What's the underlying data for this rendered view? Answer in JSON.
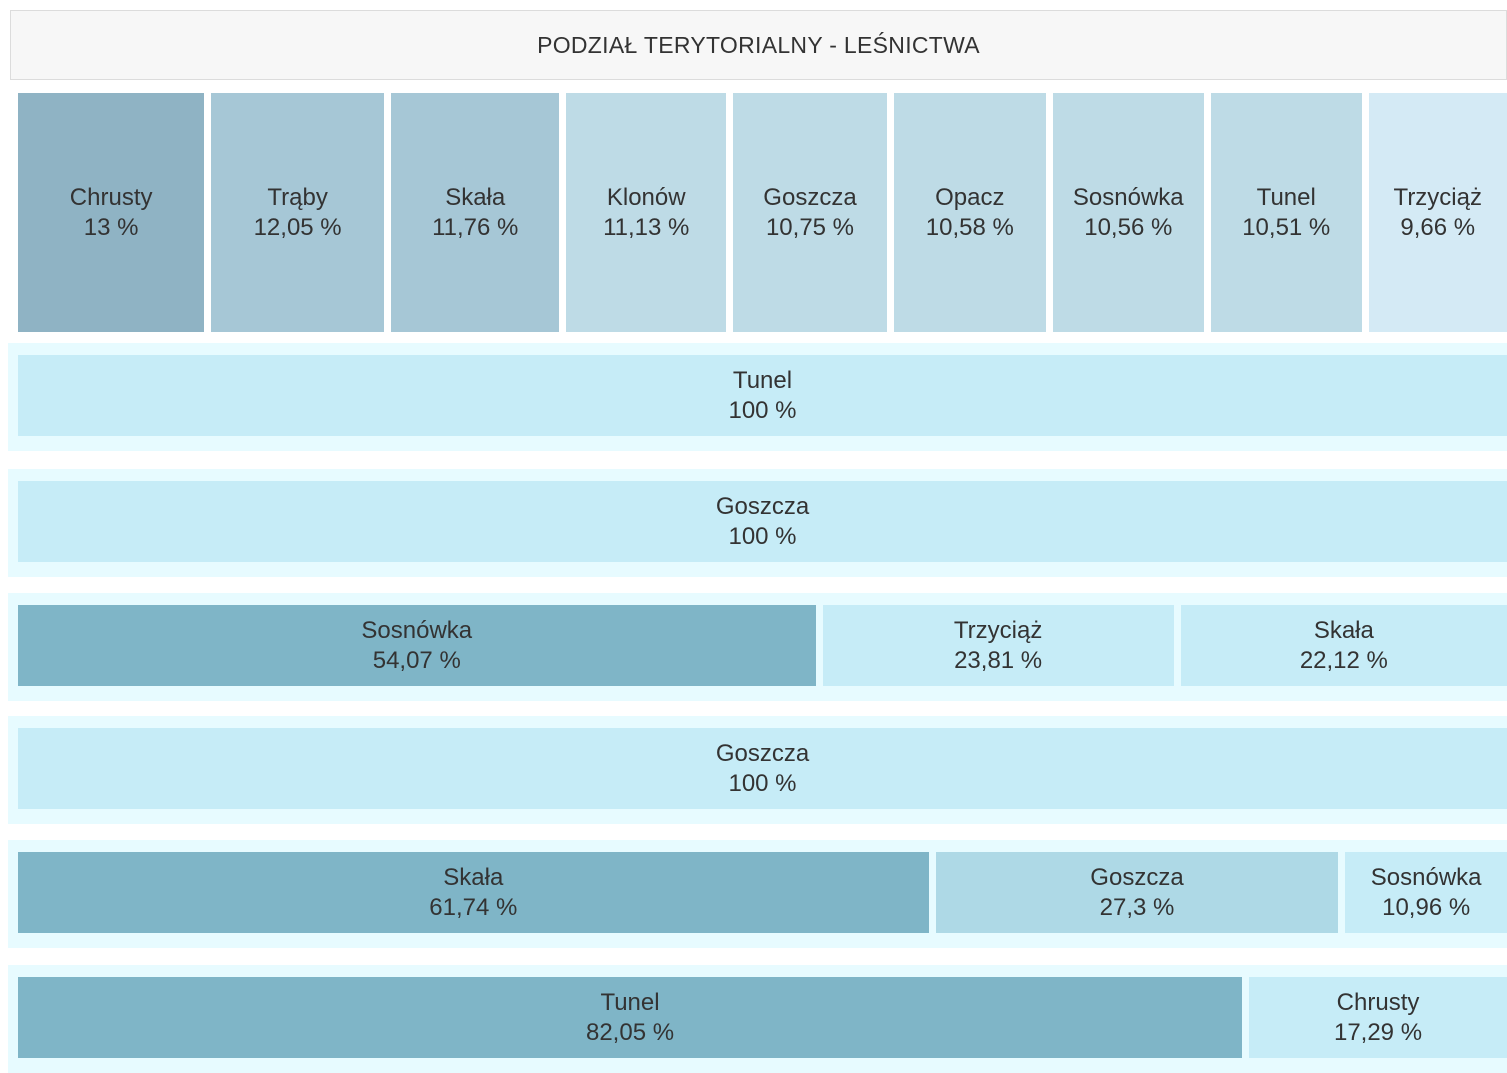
{
  "header": {
    "title": "PODZIAŁ TERYTORIALNY - LEŚNICTWA"
  },
  "rows": [
    {
      "cells": [
        {
          "name": "Chrusty",
          "value": 13,
          "value_label": "13 %",
          "color": "#8fb3c4"
        },
        {
          "name": "Trąby",
          "value": 12.05,
          "value_label": "12,05 %",
          "color": "#a6c7d6"
        },
        {
          "name": "Skała",
          "value": 11.76,
          "value_label": "11,76 %",
          "color": "#a6c7d6"
        },
        {
          "name": "Klonów",
          "value": 11.13,
          "value_label": "11,13 %",
          "color": "#bedbe6"
        },
        {
          "name": "Goszcza",
          "value": 10.75,
          "value_label": "10,75 %",
          "color": "#bedbe6"
        },
        {
          "name": "Opacz",
          "value": 10.58,
          "value_label": "10,58 %",
          "color": "#bedbe6"
        },
        {
          "name": "Sosnówka",
          "value": 10.56,
          "value_label": "10,56 %",
          "color": "#bedbe6"
        },
        {
          "name": "Tunel",
          "value": 10.51,
          "value_label": "10,51 %",
          "color": "#bedbe6"
        },
        {
          "name": "Trzyciąż",
          "value": 9.66,
          "value_label": "9,66 %",
          "color": "#d4eaf5"
        }
      ]
    },
    {
      "cells": [
        {
          "name": "Tunel",
          "value": 100,
          "value_label": "100 %",
          "color": "#c6ecf7"
        }
      ]
    },
    {
      "cells": [
        {
          "name": "Goszcza",
          "value": 100,
          "value_label": "100 %",
          "color": "#c6ecf7"
        }
      ]
    },
    {
      "cells": [
        {
          "name": "Sosnówka",
          "value": 54.07,
          "value_label": "54,07 %",
          "color": "#7fb5c7"
        },
        {
          "name": "Trzyciąż",
          "value": 23.81,
          "value_label": "23,81 %",
          "color": "#c6ecf7"
        },
        {
          "name": "Skała",
          "value": 22.12,
          "value_label": "22,12 %",
          "color": "#c6ecf7"
        }
      ]
    },
    {
      "cells": [
        {
          "name": "Goszcza",
          "value": 100,
          "value_label": "100 %",
          "color": "#c6ecf7"
        }
      ]
    },
    {
      "cells": [
        {
          "name": "Skała",
          "value": 61.74,
          "value_label": "61,74 %",
          "color": "#7fb5c7"
        },
        {
          "name": "Goszcza",
          "value": 27.3,
          "value_label": "27,3 %",
          "color": "#aed9e6"
        },
        {
          "name": "Sosnówka",
          "value": 10.96,
          "value_label": "10,96 %",
          "color": "#c6ecf7"
        }
      ]
    },
    {
      "cells": [
        {
          "name": "Tunel",
          "value": 82.05,
          "value_label": "82,05 %",
          "color": "#7fb5c7"
        },
        {
          "name": "Chrusty",
          "value": 17.29,
          "value_label": "17,29 %",
          "color": "#c6ecf7"
        }
      ]
    }
  ]
}
